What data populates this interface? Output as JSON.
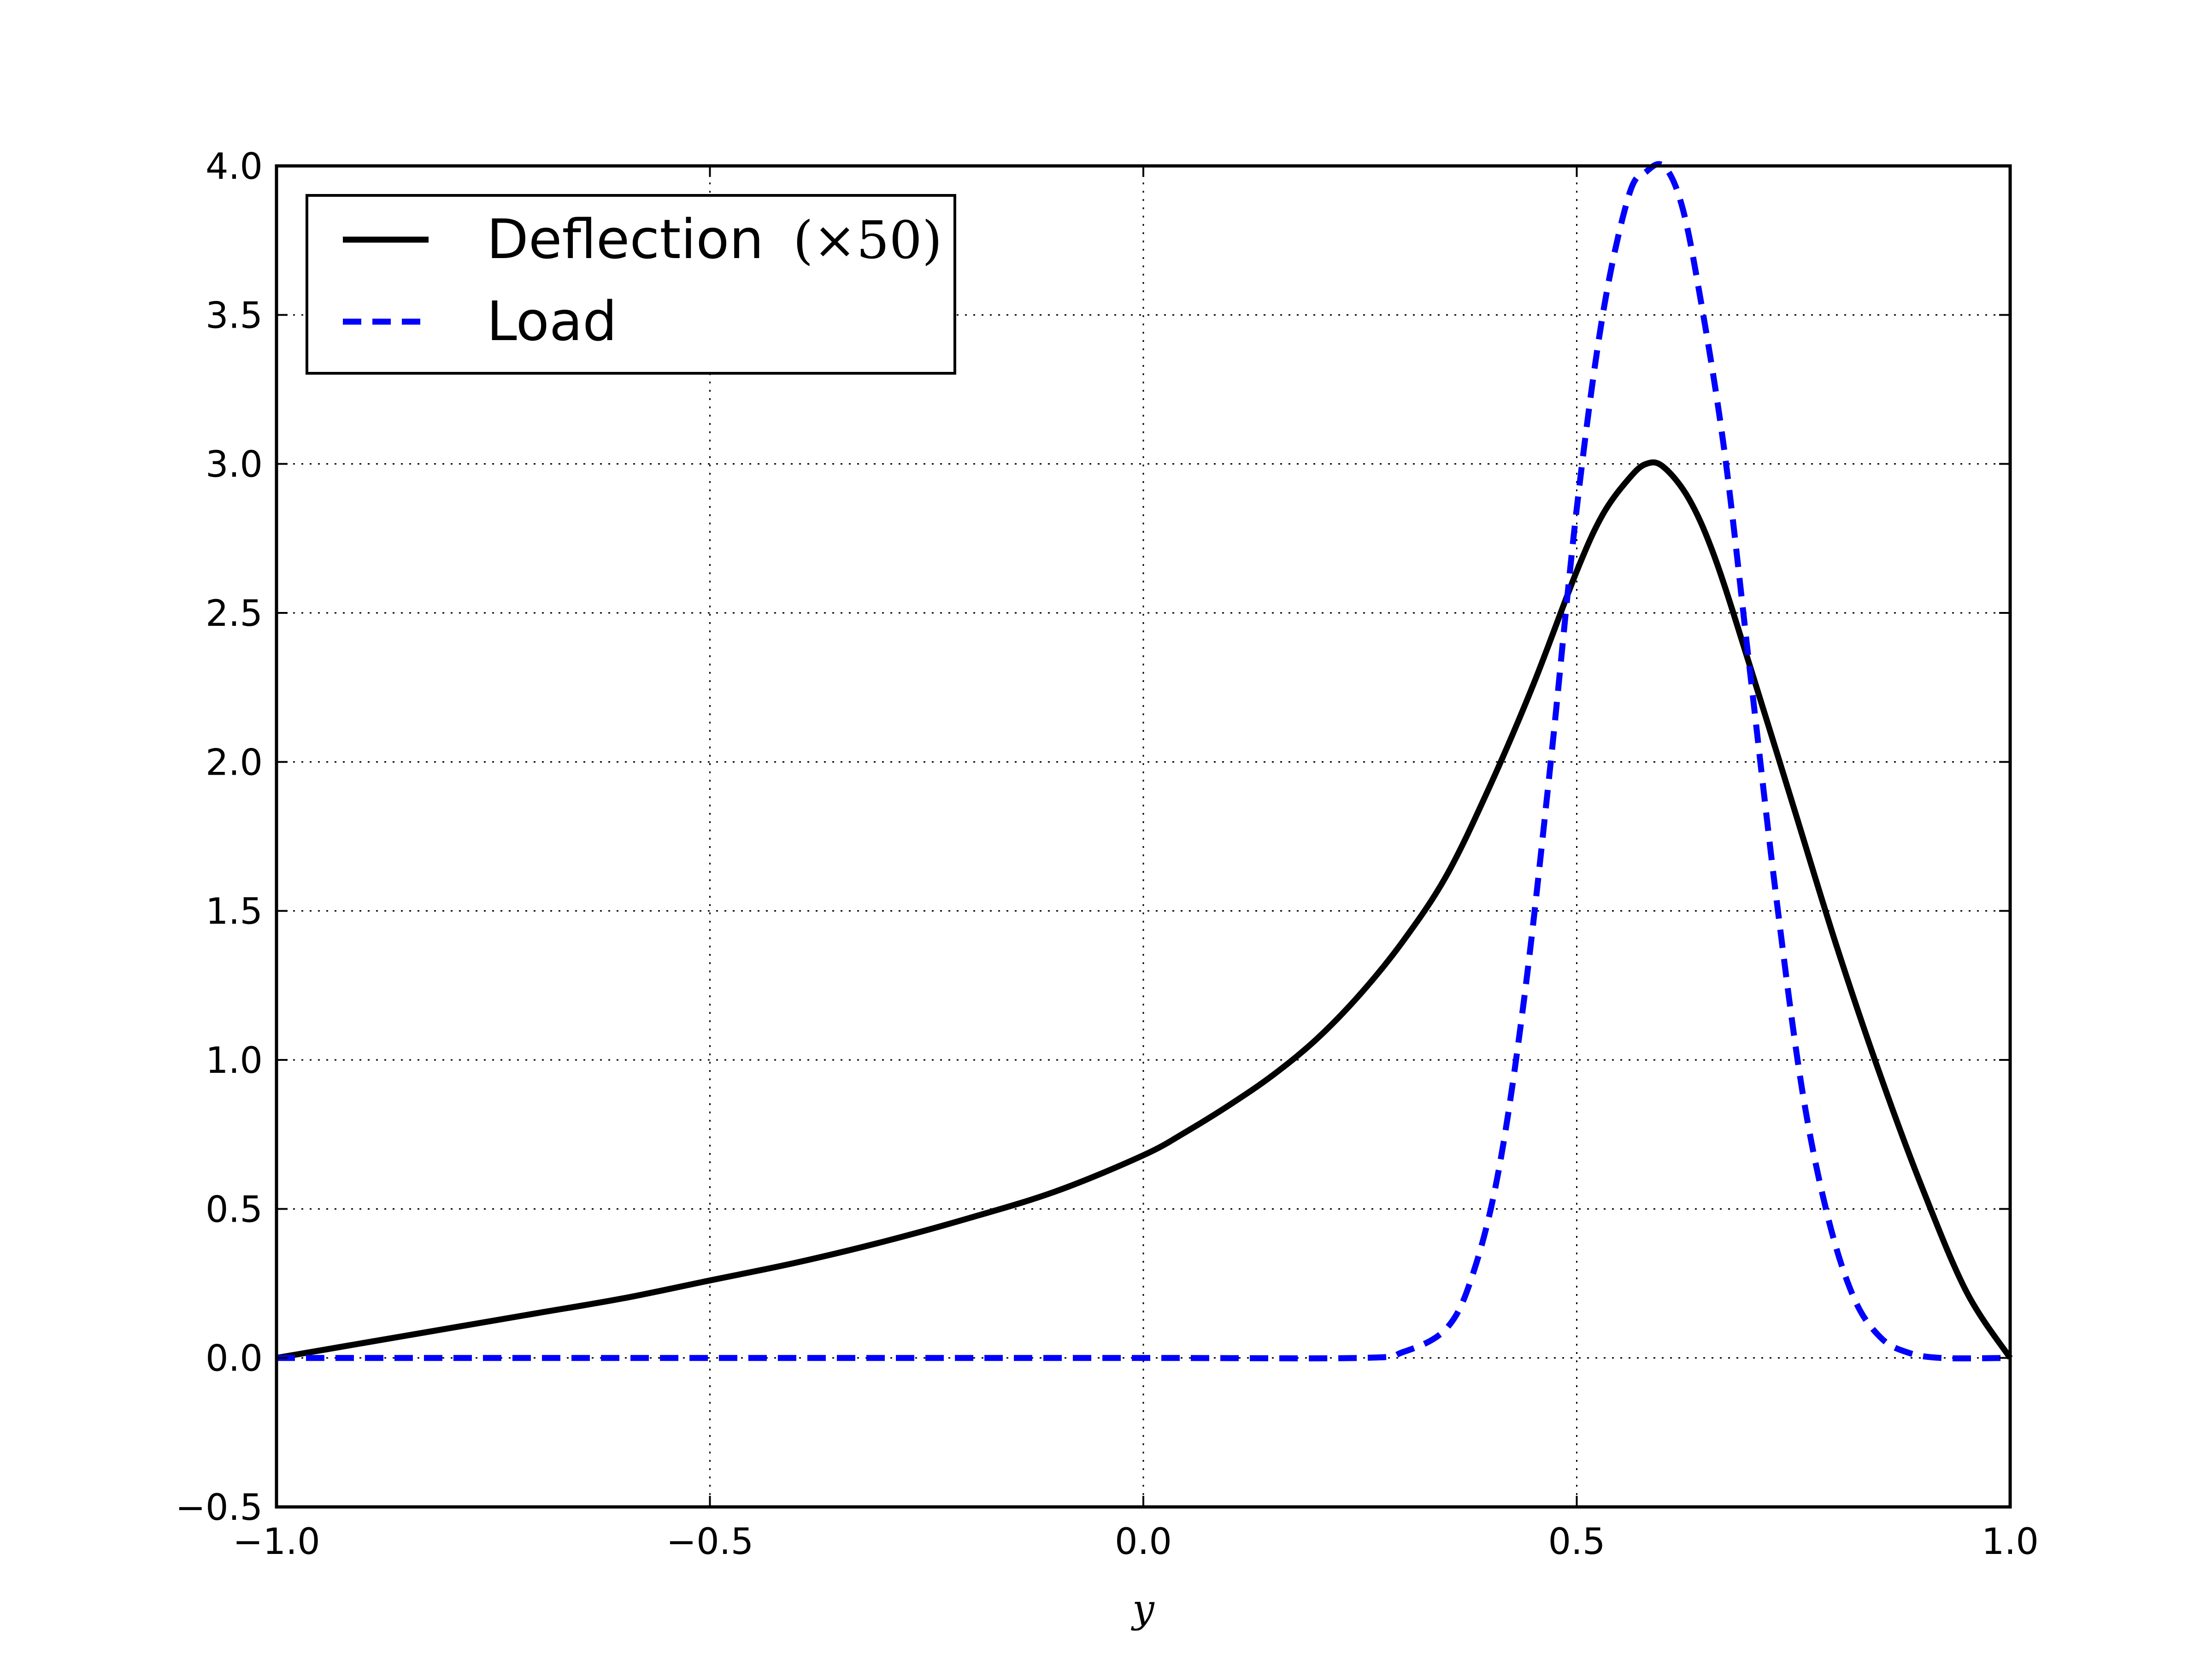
{
  "chart_data": {
    "type": "line",
    "title": "",
    "xlabel": "y",
    "ylabel": "",
    "xlim": [
      -1.0,
      1.0
    ],
    "ylim": [
      -0.5,
      4.0
    ],
    "x_ticks": [
      -1.0,
      -0.5,
      0.0,
      0.5,
      1.0
    ],
    "x_tick_labels": [
      "−1.0",
      "−0.5",
      "0.0",
      "0.5",
      "1.0"
    ],
    "y_ticks": [
      -0.5,
      0.0,
      0.5,
      1.0,
      1.5,
      2.0,
      2.5,
      3.0,
      3.5,
      4.0
    ],
    "y_tick_labels": [
      "−0.5",
      "0.0",
      "0.5",
      "1.0",
      "1.5",
      "2.0",
      "2.5",
      "3.0",
      "3.5",
      "4.0"
    ],
    "grid": true,
    "legend_position": "upper-left",
    "series": [
      {
        "name": "Deflection",
        "name_math": "(×50)",
        "style": "solid",
        "color": "#000000",
        "x": [
          -1.0,
          -0.9,
          -0.8,
          -0.7,
          -0.6,
          -0.5,
          -0.4,
          -0.3,
          -0.2,
          -0.1,
          0.0,
          0.05,
          0.1,
          0.15,
          0.2,
          0.25,
          0.3,
          0.35,
          0.4,
          0.45,
          0.5,
          0.53,
          0.56,
          0.58,
          0.6,
          0.63,
          0.66,
          0.7,
          0.75,
          0.8,
          0.85,
          0.9,
          0.95,
          1.0
        ],
        "y": [
          0.0,
          0.05,
          0.1,
          0.15,
          0.2,
          0.26,
          0.32,
          0.39,
          0.47,
          0.56,
          0.68,
          0.76,
          0.85,
          0.95,
          1.07,
          1.22,
          1.4,
          1.62,
          1.92,
          2.26,
          2.64,
          2.83,
          2.95,
          3.0,
          2.99,
          2.88,
          2.68,
          2.32,
          1.85,
          1.38,
          0.95,
          0.56,
          0.22,
          0.0
        ]
      },
      {
        "name": "Load",
        "style": "dashed",
        "color": "#0000ff",
        "x": [
          -1.0,
          -0.5,
          0.0,
          0.25,
          0.3,
          0.35,
          0.38,
          0.41,
          0.44,
          0.47,
          0.5,
          0.53,
          0.56,
          0.58,
          0.6,
          0.62,
          0.64,
          0.67,
          0.7,
          0.73,
          0.76,
          0.79,
          0.82,
          0.85,
          0.88,
          0.92,
          1.0
        ],
        "y": [
          0.0,
          0.0,
          0.0,
          0.0,
          0.02,
          0.1,
          0.28,
          0.63,
          1.22,
          2.0,
          2.85,
          3.5,
          3.9,
          3.98,
          4.0,
          3.88,
          3.6,
          3.05,
          2.3,
          1.55,
          0.9,
          0.47,
          0.2,
          0.07,
          0.02,
          0.0,
          0.0
        ]
      }
    ]
  }
}
